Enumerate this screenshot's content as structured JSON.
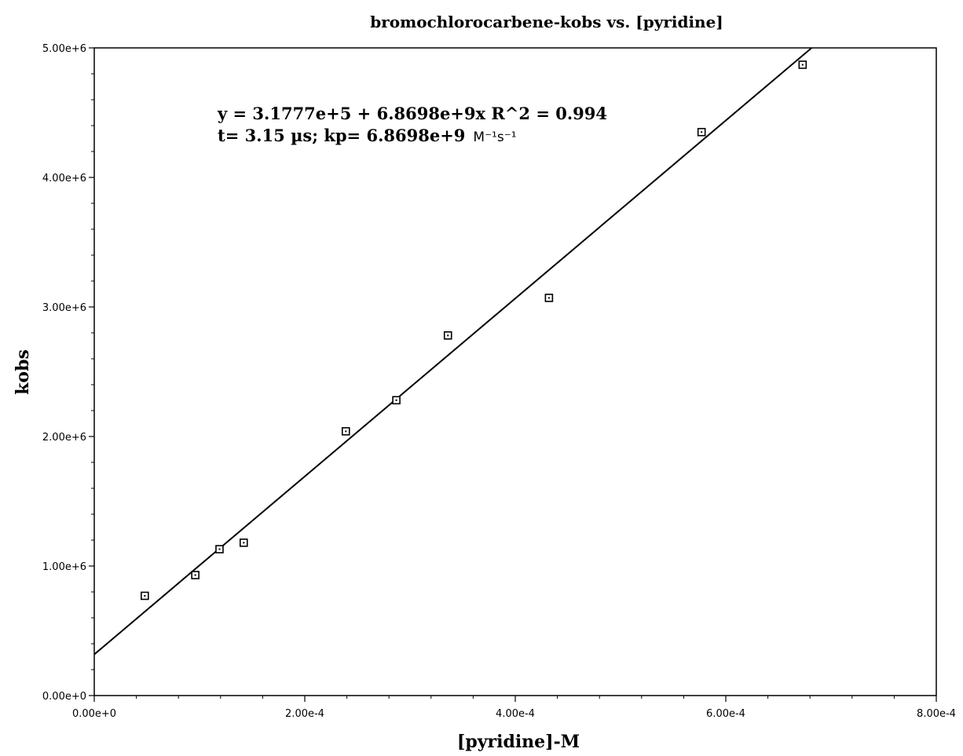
{
  "chart_data": {
    "type": "scatter",
    "title": "bromochlorocarbene-kobs vs. [pyridine]",
    "xlabel": "[pyridine]-M",
    "ylabel": "kobs",
    "xlim": [
      0,
      0.0008
    ],
    "ylim": [
      0,
      5000000
    ],
    "x_ticks": [
      "0.00e+0",
      "2.00e-4",
      "4.00e-4",
      "6.00e-4",
      "8.00e-4"
    ],
    "y_ticks": [
      "0.00e+0",
      "1.00e+6",
      "2.00e+6",
      "3.00e+6",
      "4.00e+6",
      "5.00e+6"
    ],
    "marker": "open-square",
    "series": [
      {
        "points": [
          {
            "x": 4.8e-05,
            "y": 770000
          },
          {
            "x": 9.6e-05,
            "y": 930000
          },
          {
            "x": 0.000119,
            "y": 1130000
          },
          {
            "x": 0.000142,
            "y": 1180000
          },
          {
            "x": 0.000239,
            "y": 2040000
          },
          {
            "x": 0.000287,
            "y": 2280000
          },
          {
            "x": 0.000336,
            "y": 2780000
          },
          {
            "x": 0.000432,
            "y": 3070000
          },
          {
            "x": 0.000577,
            "y": 4350000
          },
          {
            "x": 0.000673,
            "y": 4870000
          }
        ]
      }
    ],
    "fit": {
      "type": "linear",
      "intercept": 317770,
      "slope": 6869800000
    },
    "annotations": {
      "line1": "y = 3.1777e+5 + 6.8698e+9x   R^2 = 0.994",
      "line2_main": "t= 3.15 µs; kp= 6.8698e+9",
      "line2_unit": "M⁻¹s⁻¹"
    }
  }
}
